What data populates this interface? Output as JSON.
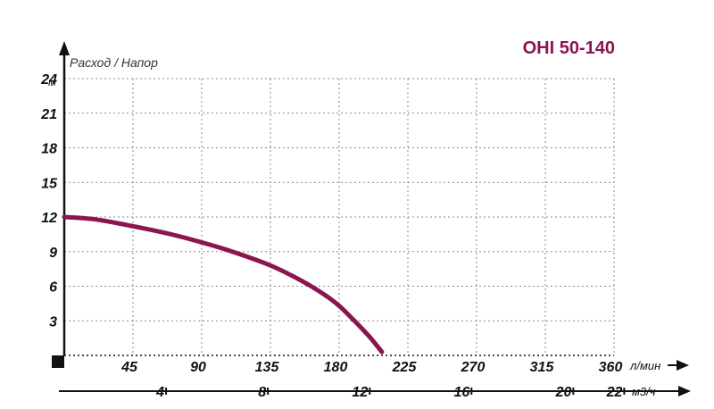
{
  "chart_data": {
    "type": "line",
    "title": "OHI 50-140",
    "ylabel": "Расход / Напор",
    "y_unit": "м",
    "x_unit": "л/мин",
    "x2_unit": "м3/ч",
    "ylim": [
      0,
      24
    ],
    "xlim": [
      0,
      360
    ],
    "y_ticks": [
      3,
      6,
      9,
      12,
      15,
      18,
      21,
      24
    ],
    "x_ticks": [
      45,
      90,
      135,
      180,
      225,
      270,
      315,
      360
    ],
    "x2_ticks": [
      4,
      8,
      12,
      16,
      20,
      22
    ],
    "grid": true,
    "series": [
      {
        "x": [
          0,
          20,
          45,
          70,
          90,
          110,
          135,
          155,
          170,
          180,
          190,
          200,
          208
        ],
        "y": [
          12,
          11.8,
          11.2,
          10.5,
          9.8,
          9.0,
          7.8,
          6.5,
          5.3,
          4.3,
          3.0,
          1.6,
          0.3
        ]
      }
    ],
    "colors": {
      "curve": "#8a1550",
      "title": "#8a1550",
      "axis": "#111111",
      "grid": "#888888"
    }
  }
}
